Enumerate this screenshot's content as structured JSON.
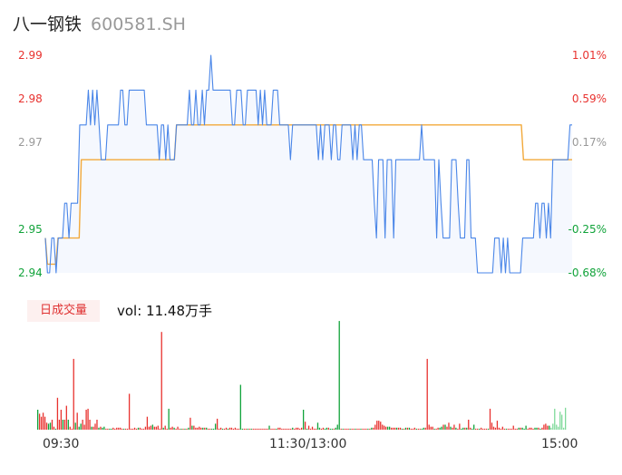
{
  "header": {
    "name": "八一钢铁",
    "code": "600581.SH"
  },
  "volume": {
    "tab_label": "日成交量",
    "prefix": "vol: ",
    "value": "11.48万手"
  },
  "colors": {
    "up": "#e8322f",
    "down": "#11a33a",
    "neutral": "#999999",
    "price_line": "#4a86e8",
    "avg_line": "#f2a93b"
  },
  "chart_data": [
    {
      "type": "line",
      "title": "",
      "y_ticks_price": [
        "2.99",
        "2.98",
        "2.97",
        "2.95",
        "2.94"
      ],
      "y_ticks_pct": [
        "1.01%",
        "0.59%",
        "0.17%",
        "-0.25%",
        "-0.68%"
      ],
      "x_ticks": [
        "09:30",
        "11:30/13:00",
        "15:00"
      ],
      "ylim": [
        2.94,
        2.99
      ],
      "prev_close": 2.965,
      "series": [
        {
          "key": "price",
          "values": [
            2.948,
            2.94,
            2.94,
            2.948,
            2.948,
            2.94,
            2.948,
            2.948,
            2.948,
            2.956,
            2.956,
            2.948,
            2.956,
            2.956,
            2.956,
            2.956,
            2.974,
            2.974,
            2.974,
            2.974,
            2.982,
            2.974,
            2.982,
            2.974,
            2.982,
            2.974,
            2.966,
            2.966,
            2.966,
            2.974,
            2.974,
            2.974,
            2.974,
            2.974,
            2.974,
            2.982,
            2.982,
            2.974,
            2.974,
            2.982,
            2.982,
            2.982,
            2.982,
            2.982,
            2.982,
            2.982,
            2.982,
            2.974,
            2.974,
            2.974,
            2.974,
            2.974,
            2.974,
            2.966,
            2.974,
            2.974,
            2.966,
            2.974,
            2.966,
            2.966,
            2.966,
            2.974,
            2.974,
            2.974,
            2.974,
            2.974,
            2.974,
            2.982,
            2.974,
            2.974,
            2.982,
            2.974,
            2.974,
            2.982,
            2.974,
            2.982,
            2.982,
            2.99,
            2.982,
            2.982,
            2.982,
            2.982,
            2.982,
            2.982,
            2.982,
            2.982,
            2.982,
            2.974,
            2.974,
            2.982,
            2.982,
            2.982,
            2.974,
            2.974,
            2.982,
            2.982,
            2.982,
            2.982,
            2.982,
            2.974,
            2.982,
            2.974,
            2.982,
            2.974,
            2.974,
            2.974,
            2.982,
            2.982,
            2.982,
            2.974,
            2.974,
            2.974,
            2.974,
            2.974,
            2.966,
            2.974,
            2.974,
            2.974,
            2.974,
            2.974,
            2.974,
            2.974,
            2.974,
            2.974,
            2.974,
            2.974,
            2.974,
            2.966,
            2.974,
            2.966,
            2.974,
            2.974,
            2.974,
            2.966,
            2.974,
            2.974,
            2.966,
            2.966,
            2.974,
            2.974,
            2.974,
            2.974,
            2.974,
            2.966,
            2.974,
            2.966,
            2.974,
            2.974,
            2.966,
            2.966,
            2.966,
            2.966,
            2.966,
            2.956,
            2.948,
            2.966,
            2.966,
            2.966,
            2.948,
            2.966,
            2.966,
            2.966,
            2.948,
            2.966,
            2.966,
            2.966,
            2.966,
            2.966,
            2.966,
            2.966,
            2.966,
            2.966,
            2.966,
            2.966,
            2.966,
            2.974,
            2.966,
            2.966,
            2.966,
            2.966,
            2.966,
            2.966,
            2.948,
            2.966,
            2.956,
            2.948,
            2.948,
            2.948,
            2.948,
            2.966,
            2.966,
            2.966,
            2.956,
            2.948,
            2.948,
            2.948,
            2.966,
            2.966,
            2.948,
            2.948,
            2.948,
            2.94,
            2.94,
            2.94,
            2.94,
            2.94,
            2.94,
            2.94,
            2.94,
            2.948,
            2.948,
            2.948,
            2.94,
            2.948,
            2.94,
            2.948,
            2.94,
            2.94,
            2.94,
            2.94,
            2.94,
            2.94,
            2.948,
            2.948,
            2.948,
            2.948,
            2.948,
            2.948,
            2.956,
            2.956,
            2.948,
            2.956,
            2.956,
            2.948,
            2.956,
            2.948,
            2.966,
            2.966,
            2.966,
            2.966,
            2.966,
            2.966,
            2.966,
            2.966,
            2.974,
            2.974
          ]
        },
        {
          "key": "avg",
          "values": [
            2.948,
            2.942,
            2.942,
            2.942,
            2.942,
            2.942,
            2.948,
            2.948,
            2.948,
            2.948,
            2.948,
            2.948,
            2.948,
            2.948,
            2.948,
            2.948,
            2.948,
            2.966,
            2.966,
            2.966,
            2.966,
            2.966,
            2.966,
            2.966,
            2.966,
            2.966,
            2.966,
            2.966,
            2.966,
            2.966,
            2.966,
            2.966,
            2.966,
            2.966,
            2.966,
            2.966,
            2.966,
            2.966,
            2.966,
            2.966,
            2.966,
            2.966,
            2.966,
            2.966,
            2.966,
            2.966,
            2.966,
            2.966,
            2.966,
            2.966,
            2.966,
            2.966,
            2.966,
            2.966,
            2.966,
            2.966,
            2.966,
            2.966,
            2.966,
            2.966,
            2.966,
            2.966,
            2.974,
            2.974,
            2.974,
            2.974,
            2.974,
            2.974,
            2.974,
            2.974,
            2.974,
            2.974,
            2.974,
            2.974,
            2.974,
            2.974,
            2.974,
            2.974,
            2.974,
            2.974,
            2.974,
            2.974,
            2.974,
            2.974,
            2.974,
            2.974,
            2.974,
            2.974,
            2.974,
            2.974,
            2.974,
            2.974,
            2.974,
            2.974,
            2.974,
            2.974,
            2.974,
            2.974,
            2.974,
            2.974,
            2.974,
            2.974,
            2.974,
            2.974,
            2.974,
            2.974,
            2.974,
            2.974,
            2.974,
            2.974,
            2.974,
            2.974,
            2.974,
            2.974,
            2.974,
            2.974,
            2.974,
            2.974,
            2.974,
            2.974,
            2.974,
            2.974,
            2.974,
            2.974,
            2.974,
            2.974,
            2.974,
            2.974,
            2.974,
            2.974,
            2.974,
            2.974,
            2.974,
            2.974,
            2.974,
            2.974,
            2.974,
            2.974,
            2.974,
            2.974,
            2.974,
            2.974,
            2.974,
            2.974,
            2.974,
            2.974,
            2.974,
            2.974,
            2.974,
            2.974,
            2.974,
            2.974,
            2.974,
            2.974,
            2.974,
            2.974,
            2.974,
            2.974,
            2.974,
            2.974,
            2.974,
            2.974,
            2.974,
            2.974,
            2.974,
            2.974,
            2.974,
            2.974,
            2.974,
            2.974,
            2.974,
            2.974,
            2.974,
            2.974,
            2.974,
            2.974,
            2.974,
            2.974,
            2.974,
            2.974,
            2.974,
            2.974,
            2.974,
            2.974,
            2.974,
            2.974,
            2.974,
            2.974,
            2.974,
            2.974,
            2.974,
            2.974,
            2.974,
            2.974,
            2.974,
            2.974,
            2.974,
            2.974,
            2.974,
            2.974,
            2.974,
            2.974,
            2.974,
            2.974,
            2.974,
            2.974,
            2.974,
            2.974,
            2.974,
            2.974,
            2.974,
            2.974,
            2.974,
            2.974,
            2.974,
            2.974,
            2.974,
            2.974,
            2.974,
            2.974,
            2.974,
            2.974,
            2.974,
            2.974,
            2.974,
            2.974,
            2.966,
            2.966,
            2.966,
            2.966,
            2.966,
            2.966,
            2.966,
            2.966,
            2.966,
            2.966,
            2.966,
            2.966,
            2.966,
            2.966,
            2.966,
            2.966,
            2.966,
            2.966,
            2.966,
            2.966,
            2.966,
            2.966,
            2.966,
            2.966
          ]
        }
      ]
    },
    {
      "type": "bar",
      "title": "",
      "volume_heights_pct": [
        20,
        16,
        13,
        17,
        13,
        7,
        6,
        7,
        10,
        3,
        1,
        32,
        10,
        20,
        10,
        10,
        24,
        10,
        3,
        1,
        71,
        7,
        17,
        3,
        6,
        10,
        5,
        20,
        21,
        10,
        3,
        3,
        6,
        10,
        2,
        3,
        2,
        3,
        1,
        1,
        1,
        1,
        2,
        1,
        2,
        2,
        2,
        1,
        1,
        1,
        1,
        36,
        1,
        1,
        2,
        1,
        2,
        2,
        1,
        1,
        3,
        13,
        3,
        4,
        5,
        3,
        3,
        4,
        1,
        98,
        2,
        4,
        1,
        21,
        2,
        3,
        2,
        1,
        3,
        1,
        1,
        1,
        1,
        1,
        2,
        12,
        4,
        4,
        2,
        2,
        3,
        2,
        2,
        2,
        2,
        1,
        1,
        1,
        1,
        6,
        11,
        1,
        2,
        1,
        1,
        2,
        1,
        2,
        2,
        1,
        2,
        1,
        1,
        45,
        1,
        1,
        1,
        1,
        1,
        1,
        1,
        1,
        1,
        1,
        1,
        1,
        1,
        1,
        1,
        4,
        1,
        1,
        1,
        1,
        2,
        2,
        1,
        1,
        1,
        1,
        1,
        1,
        2,
        1,
        2,
        2,
        1,
        2,
        20,
        8,
        1,
        4,
        1,
        3,
        1,
        1,
        7,
        2,
        1,
        2,
        1,
        2,
        2,
        1,
        1,
        1,
        2,
        5,
        109,
        1,
        1,
        1,
        1,
        1,
        1,
        1,
        1,
        1,
        1,
        1,
        1,
        1,
        1,
        1,
        1,
        1,
        2,
        2,
        5,
        9,
        9,
        8,
        5,
        4,
        3,
        3,
        3,
        2,
        2,
        2,
        2,
        2,
        2,
        1,
        1,
        2,
        2,
        2,
        1,
        1,
        2,
        1,
        1,
        1,
        1,
        2,
        2,
        71,
        5,
        3,
        3,
        1,
        1,
        2,
        2,
        3,
        5,
        5,
        3,
        7,
        3,
        2,
        5,
        2,
        1,
        6,
        1,
        2,
        2,
        2,
        10,
        2,
        1,
        5,
        1,
        1,
        1,
        2,
        1,
        1,
        1,
        1,
        21,
        7,
        3,
        2,
        9,
        2,
        1,
        3,
        1,
        1,
        1,
        1,
        1,
        4,
        1,
        1,
        2,
        2,
        2,
        1,
        4,
        1,
        2,
        2,
        1,
        2,
        2,
        2,
        1,
        2,
        5,
        6,
        4,
        4,
        2,
        6,
        21,
        5,
        3,
        18,
        15,
        2,
        22
      ],
      "volume_colors": [
        "g",
        "r",
        "r",
        "r",
        "r",
        "r",
        "g",
        "g",
        "r",
        "r",
        "g",
        "r",
        "r",
        "r",
        "g",
        "r",
        "r",
        "g",
        "r",
        "r",
        "r",
        "g",
        "r",
        "g",
        "g",
        "r",
        "r",
        "r",
        "r",
        "r",
        "g",
        "r",
        "r",
        "r",
        "g",
        "r",
        "g",
        "g",
        "r",
        "r",
        "g",
        "g",
        "r",
        "r",
        "r",
        "r",
        "r",
        "r",
        "g",
        "r",
        "r",
        "r",
        "r",
        "r",
        "r",
        "r",
        "g",
        "r",
        "r",
        "r",
        "r",
        "r",
        "r",
        "r",
        "g",
        "r",
        "r",
        "r",
        "r",
        "r",
        "g",
        "r",
        "r",
        "g",
        "r",
        "r",
        "g",
        "r",
        "r",
        "r",
        "g",
        "r",
        "g",
        "r",
        "g",
        "r",
        "g",
        "r",
        "r",
        "r",
        "r",
        "r",
        "g",
        "r",
        "g",
        "r",
        "r",
        "g",
        "g",
        "g",
        "r",
        "r",
        "r",
        "g",
        "r",
        "r",
        "g",
        "r",
        "r",
        "r",
        "r",
        "r",
        "r",
        "g",
        "g",
        "r",
        "r",
        "g",
        "r",
        "g",
        "r",
        "r",
        "r",
        "r",
        "r",
        "r",
        "r",
        "r",
        "r",
        "g",
        "r",
        "r",
        "r",
        "g",
        "r",
        "r",
        "r",
        "r",
        "r",
        "r",
        "r",
        "r",
        "g",
        "r",
        "r",
        "r",
        "r",
        "r",
        "g",
        "r",
        "g",
        "r",
        "r",
        "r",
        "r",
        "r",
        "g",
        "g",
        "r",
        "r",
        "g",
        "g",
        "r",
        "g",
        "g",
        "r",
        "g",
        "g",
        "g",
        "r",
        "g",
        "r",
        "r",
        "r",
        "g",
        "r",
        "r",
        "g",
        "r",
        "r",
        "g",
        "r",
        "r",
        "r",
        "g",
        "r",
        "g",
        "r",
        "r",
        "r",
        "r",
        "r",
        "r",
        "r",
        "r",
        "g",
        "g",
        "r",
        "r",
        "r",
        "g",
        "r",
        "r",
        "g",
        "r",
        "g",
        "r",
        "g",
        "r",
        "r",
        "r",
        "g",
        "r",
        "r",
        "g",
        "g",
        "r",
        "r",
        "r",
        "r",
        "r",
        "g",
        "r",
        "r",
        "g",
        "g",
        "r",
        "g",
        "r",
        "r",
        "g",
        "r",
        "r",
        "g",
        "r",
        "r",
        "g",
        "g",
        "r",
        "g",
        "r",
        "r",
        "g",
        "g",
        "r",
        "r",
        "g",
        "r",
        "r",
        "r",
        "r",
        "g",
        "r",
        "r",
        "r",
        "r",
        "r",
        "r",
        "r",
        "r",
        "r",
        "g",
        "r",
        "r",
        "r",
        "r",
        "r",
        "r",
        "g",
        "r",
        "g",
        "g",
        "g",
        "r",
        "r",
        "r",
        "r",
        "g",
        "g",
        "r",
        "g",
        "r",
        "r",
        "r",
        "r",
        "g",
        "n"
      ]
    }
  ]
}
